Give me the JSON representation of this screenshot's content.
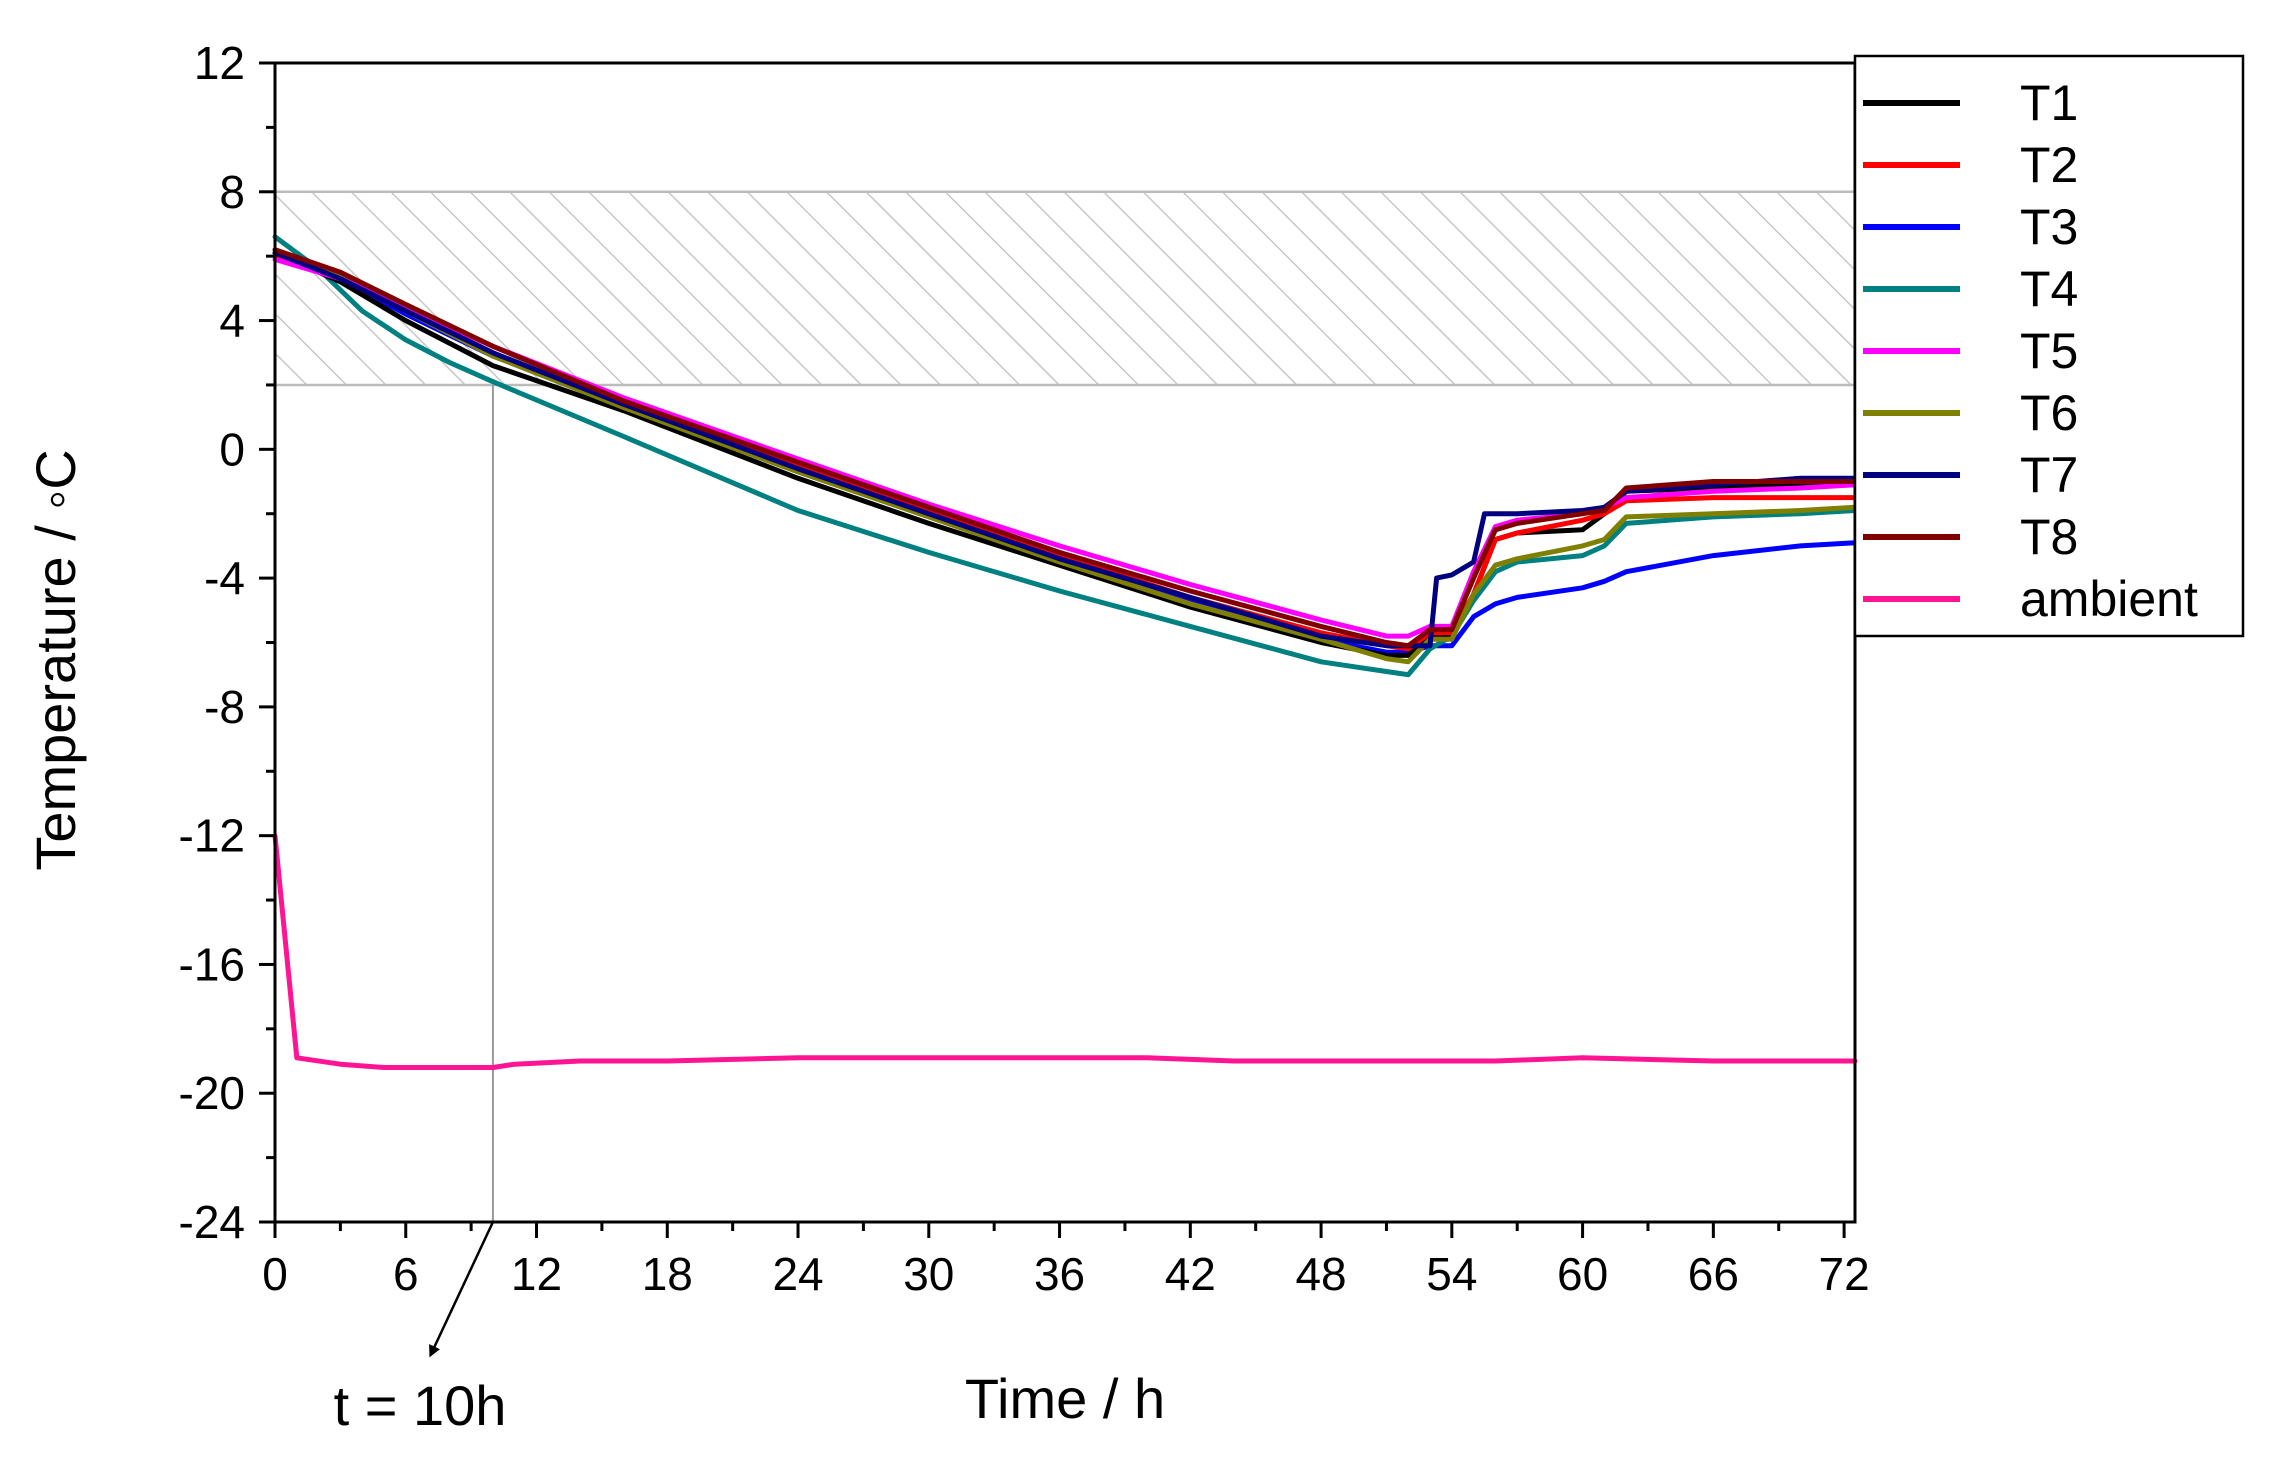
{
  "chart_data": {
    "type": "line",
    "xlabel": "Time / h",
    "ylabel": "Temperature / ◦C",
    "xlim": [
      0,
      72.5
    ],
    "ylim": [
      -24,
      12
    ],
    "xticks": [
      0,
      6,
      12,
      18,
      24,
      30,
      36,
      42,
      48,
      54,
      60,
      66,
      72
    ],
    "yticks": [
      12,
      8,
      4,
      0,
      -4,
      -8,
      -12,
      -16,
      -20,
      -24
    ],
    "grid": false,
    "legend_position": "right",
    "band": {
      "y_from": 2,
      "y_to": 8,
      "style": "hatched",
      "color": "#bbbbbb"
    },
    "annotation": {
      "text": "t = 10h",
      "x": 10
    },
    "series": [
      {
        "name": "T1",
        "color": "#000000",
        "x": [
          0,
          3,
          6,
          10,
          16,
          24,
          30,
          36,
          42,
          48,
          51,
          52,
          53,
          54,
          55,
          56,
          57,
          60,
          61,
          62,
          66,
          70,
          72.5
        ],
        "y": [
          6.1,
          5.2,
          4.0,
          2.6,
          1.2,
          -0.9,
          -2.3,
          -3.6,
          -4.9,
          -6.0,
          -6.4,
          -6.4,
          -5.8,
          -5.8,
          -4.5,
          -2.8,
          -2.6,
          -2.5,
          -2.0,
          -1.3,
          -1.2,
          -1.1,
          -1.0
        ]
      },
      {
        "name": "T2",
        "color": "#ff0000",
        "x": [
          0,
          3,
          6,
          10,
          16,
          24,
          30,
          36,
          42,
          48,
          51,
          52,
          53,
          54,
          55,
          56,
          57,
          60,
          61,
          62,
          66,
          70,
          72.5
        ],
        "y": [
          6.0,
          5.3,
          4.3,
          3.0,
          1.3,
          -0.5,
          -1.9,
          -3.3,
          -4.6,
          -5.7,
          -6.1,
          -6.2,
          -5.7,
          -5.7,
          -4.5,
          -2.8,
          -2.6,
          -2.2,
          -2.0,
          -1.6,
          -1.5,
          -1.5,
          -1.5
        ]
      },
      {
        "name": "T3",
        "color": "#0000ff",
        "x": [
          0,
          3,
          6,
          10,
          16,
          24,
          30,
          36,
          42,
          48,
          51,
          52,
          53,
          54,
          55,
          56,
          57,
          60,
          61,
          62,
          66,
          70,
          72.5
        ],
        "y": [
          6.0,
          5.3,
          4.2,
          2.9,
          1.4,
          -0.6,
          -2.0,
          -3.4,
          -4.7,
          -5.9,
          -6.3,
          -6.3,
          -6.1,
          -6.1,
          -5.2,
          -4.8,
          -4.6,
          -4.3,
          -4.1,
          -3.8,
          -3.3,
          -3.0,
          -2.9
        ]
      },
      {
        "name": "T4",
        "color": "#008080",
        "x": [
          0,
          2,
          4,
          6,
          8,
          10,
          16,
          24,
          30,
          36,
          42,
          48,
          50,
          51,
          52,
          53,
          54,
          55,
          56,
          57,
          60,
          61,
          62,
          66,
          70,
          72.5
        ],
        "y": [
          6.6,
          5.6,
          4.3,
          3.4,
          2.7,
          2.1,
          0.4,
          -1.9,
          -3.2,
          -4.4,
          -5.5,
          -6.6,
          -6.8,
          -6.9,
          -7.0,
          -6.2,
          -5.8,
          -4.7,
          -3.8,
          -3.5,
          -3.3,
          -3.0,
          -2.3,
          -2.1,
          -2.0,
          -1.9
        ]
      },
      {
        "name": "T5",
        "color": "#ff00ff",
        "x": [
          0,
          3,
          6,
          10,
          16,
          24,
          30,
          36,
          42,
          48,
          51,
          52,
          53,
          54,
          55,
          56,
          57,
          60,
          61,
          62,
          66,
          70,
          72.5
        ],
        "y": [
          5.9,
          5.3,
          4.4,
          3.2,
          1.6,
          -0.3,
          -1.7,
          -3.0,
          -4.2,
          -5.3,
          -5.8,
          -5.8,
          -5.5,
          -5.5,
          -3.8,
          -2.4,
          -2.2,
          -2.0,
          -1.8,
          -1.5,
          -1.3,
          -1.2,
          -1.1
        ]
      },
      {
        "name": "T6",
        "color": "#808000",
        "x": [
          0,
          3,
          6,
          10,
          16,
          24,
          30,
          36,
          42,
          48,
          51,
          52,
          53,
          54,
          55,
          56,
          57,
          60,
          61,
          62,
          66,
          70,
          72.5
        ],
        "y": [
          6.2,
          5.4,
          4.3,
          2.9,
          1.3,
          -0.7,
          -2.1,
          -3.5,
          -4.8,
          -5.9,
          -6.5,
          -6.6,
          -5.9,
          -5.9,
          -4.5,
          -3.6,
          -3.4,
          -3.0,
          -2.8,
          -2.1,
          -2.0,
          -1.9,
          -1.8
        ]
      },
      {
        "name": "T7",
        "color": "#000080",
        "x": [
          0,
          3,
          6,
          10,
          16,
          24,
          30,
          36,
          42,
          48,
          51,
          52,
          53,
          53.3,
          54,
          55,
          55.5,
          56,
          57,
          60,
          61,
          62,
          66,
          70,
          72.5
        ],
        "y": [
          6.1,
          5.3,
          4.3,
          3.0,
          1.4,
          -0.6,
          -2.0,
          -3.4,
          -4.6,
          -5.8,
          -6.1,
          -6.1,
          -6.1,
          -4.0,
          -3.9,
          -3.5,
          -2.0,
          -2.0,
          -2.0,
          -1.9,
          -1.8,
          -1.3,
          -1.1,
          -0.9,
          -0.9
        ]
      },
      {
        "name": "T8",
        "color": "#800000",
        "x": [
          0,
          3,
          6,
          10,
          16,
          24,
          30,
          36,
          42,
          48,
          51,
          52,
          53,
          54,
          55,
          56,
          57,
          60,
          61,
          62,
          66,
          70,
          72.5
        ],
        "y": [
          6.2,
          5.5,
          4.5,
          3.2,
          1.5,
          -0.4,
          -1.8,
          -3.2,
          -4.4,
          -5.5,
          -6.0,
          -6.1,
          -5.6,
          -5.6,
          -4.0,
          -2.5,
          -2.3,
          -2.0,
          -1.9,
          -1.2,
          -1.0,
          -1.0,
          -1.0
        ]
      },
      {
        "name": "ambient",
        "color": "#ff1493",
        "x": [
          0,
          1,
          3,
          5,
          10,
          11,
          14,
          18,
          24,
          30,
          36,
          40,
          44,
          50,
          56,
          60,
          66,
          68,
          72.5
        ],
        "y": [
          -12.0,
          -18.9,
          -19.1,
          -19.2,
          -19.2,
          -19.1,
          -19.0,
          -19.0,
          -18.9,
          -18.9,
          -18.9,
          -18.9,
          -19.0,
          -19.0,
          -19.0,
          -18.9,
          -19.0,
          -19.0,
          -19.0
        ]
      }
    ]
  }
}
